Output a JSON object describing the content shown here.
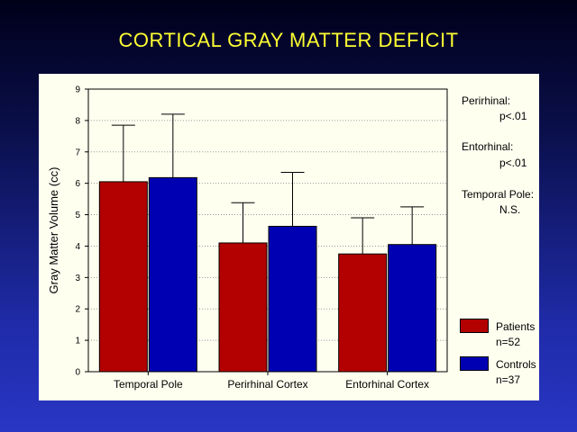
{
  "slide": {
    "title": "CORTICAL GRAY MATTER DEFICIT"
  },
  "chart_data": {
    "type": "bar",
    "title": "CORTICAL GRAY MATTER DEFICIT",
    "xlabel": "",
    "ylabel": "Gray Matter Volume (cc)",
    "ylim": [
      0,
      9
    ],
    "yticks": [
      0,
      1,
      2,
      3,
      4,
      5,
      6,
      7,
      8,
      9
    ],
    "grid": true,
    "categories": [
      "Temporal Pole",
      "Perirhinal Cortex",
      "Entorhinal Cortex"
    ],
    "series": [
      {
        "name": "Patients",
        "n_label": "n=52",
        "color": "#b30000",
        "values": [
          6.05,
          4.1,
          3.75
        ],
        "error_upper": [
          7.85,
          5.38,
          4.9
        ]
      },
      {
        "name": "Controls",
        "n_label": "n=37",
        "color": "#0000b3",
        "values": [
          6.18,
          4.63,
          4.05
        ],
        "error_upper": [
          8.2,
          6.35,
          5.25
        ]
      }
    ],
    "annotations": [
      {
        "label": "Perirhinal:",
        "value": "p<.01"
      },
      {
        "label": "Entorhinal:",
        "value": "p<.01"
      },
      {
        "label": "Temporal Pole:",
        "value": "N.S."
      }
    ],
    "legend_position": "bottom-right"
  }
}
